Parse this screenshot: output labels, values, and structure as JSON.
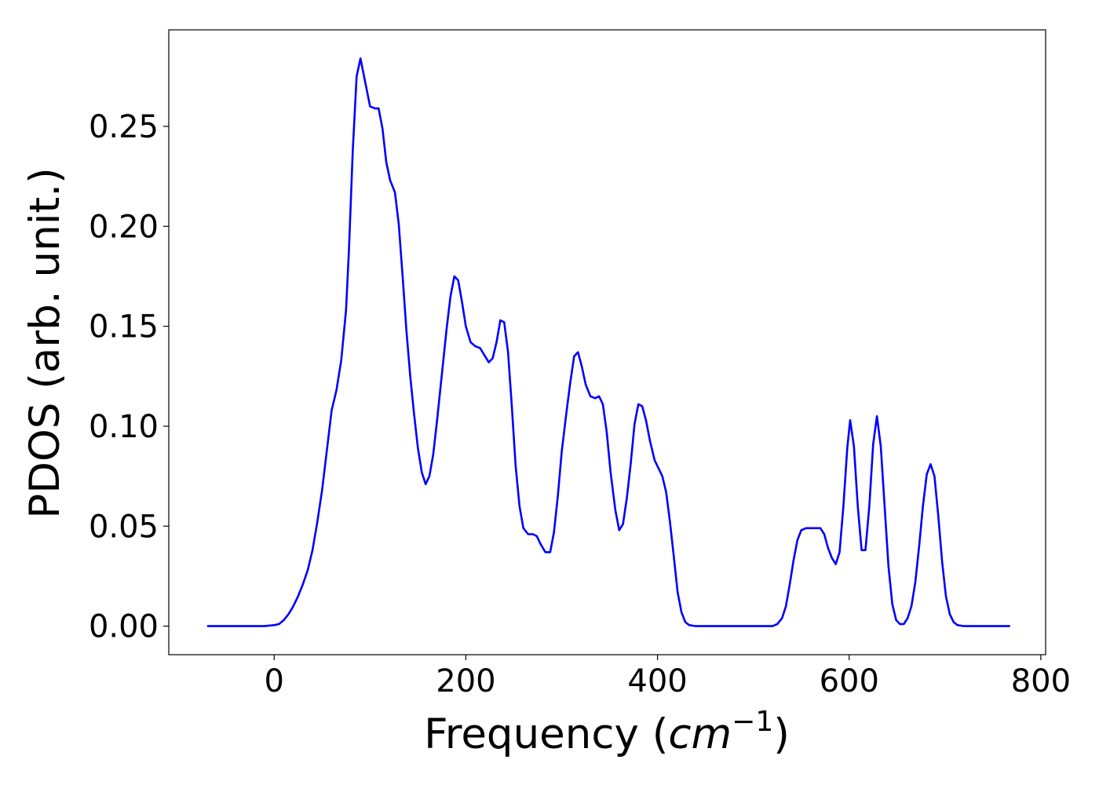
{
  "chart_data": {
    "type": "line",
    "title": "",
    "xlabel": {
      "prefix": "Frequency (",
      "italic": "cm",
      "superscript": "−1",
      "suffix": ")"
    },
    "ylabel": "PDOS (arb. unit.)",
    "xlim": [
      -110,
      805
    ],
    "ylim": [
      -0.0143,
      0.2983
    ],
    "x_ticks": [
      0,
      200,
      400,
      600,
      800
    ],
    "x_tick_labels": [
      "0",
      "200",
      "400",
      "600",
      "800"
    ],
    "y_ticks": [
      0.0,
      0.05,
      0.1,
      0.15,
      0.2,
      0.25
    ],
    "y_tick_labels": [
      "0.00",
      "0.05",
      "0.10",
      "0.15",
      "0.20",
      "0.25"
    ],
    "grid": false,
    "legend": "none",
    "series": [
      {
        "color": "#0000ff",
        "points": [
          [
            -70,
            0.0
          ],
          [
            -40,
            0.0
          ],
          [
            -10,
            0.0
          ],
          [
            0,
            0.0005
          ],
          [
            5,
            0.001
          ],
          [
            10,
            0.003
          ],
          [
            15,
            0.006
          ],
          [
            20,
            0.01
          ],
          [
            25,
            0.015
          ],
          [
            30,
            0.021
          ],
          [
            35,
            0.028
          ],
          [
            40,
            0.038
          ],
          [
            45,
            0.052
          ],
          [
            50,
            0.068
          ],
          [
            55,
            0.088
          ],
          [
            60,
            0.108
          ],
          [
            65,
            0.118
          ],
          [
            70,
            0.133
          ],
          [
            75,
            0.158
          ],
          [
            78,
            0.188
          ],
          [
            82,
            0.238
          ],
          [
            86,
            0.275
          ],
          [
            90,
            0.284
          ],
          [
            95,
            0.272
          ],
          [
            100,
            0.26
          ],
          [
            105,
            0.259
          ],
          [
            109,
            0.259
          ],
          [
            113,
            0.249
          ],
          [
            117,
            0.232
          ],
          [
            121,
            0.223
          ],
          [
            126,
            0.217
          ],
          [
            130,
            0.201
          ],
          [
            134,
            0.175
          ],
          [
            138,
            0.148
          ],
          [
            142,
            0.125
          ],
          [
            146,
            0.106
          ],
          [
            150,
            0.089
          ],
          [
            154,
            0.077
          ],
          [
            158,
            0.071
          ],
          [
            162,
            0.075
          ],
          [
            166,
            0.086
          ],
          [
            170,
            0.103
          ],
          [
            175,
            0.126
          ],
          [
            180,
            0.149
          ],
          [
            184,
            0.165
          ],
          [
            188,
            0.175
          ],
          [
            192,
            0.173
          ],
          [
            196,
            0.162
          ],
          [
            200,
            0.15
          ],
          [
            205,
            0.142
          ],
          [
            210,
            0.14
          ],
          [
            215,
            0.139
          ],
          [
            220,
            0.135
          ],
          [
            224,
            0.132
          ],
          [
            228,
            0.134
          ],
          [
            232,
            0.142
          ],
          [
            236,
            0.153
          ],
          [
            240,
            0.152
          ],
          [
            244,
            0.137
          ],
          [
            248,
            0.11
          ],
          [
            252,
            0.08
          ],
          [
            256,
            0.06
          ],
          [
            260,
            0.049
          ],
          [
            265,
            0.046
          ],
          [
            270,
            0.046
          ],
          [
            274,
            0.045
          ],
          [
            278,
            0.041
          ],
          [
            283,
            0.037
          ],
          [
            288,
            0.037
          ],
          [
            292,
            0.047
          ],
          [
            296,
            0.065
          ],
          [
            300,
            0.087
          ],
          [
            305,
            0.107
          ],
          [
            309,
            0.122
          ],
          [
            313,
            0.135
          ],
          [
            317,
            0.137
          ],
          [
            321,
            0.13
          ],
          [
            325,
            0.121
          ],
          [
            330,
            0.115
          ],
          [
            335,
            0.114
          ],
          [
            339,
            0.115
          ],
          [
            343,
            0.111
          ],
          [
            347,
            0.097
          ],
          [
            351,
            0.077
          ],
          [
            356,
            0.058
          ],
          [
            360,
            0.048
          ],
          [
            364,
            0.051
          ],
          [
            368,
            0.064
          ],
          [
            372,
            0.081
          ],
          [
            376,
            0.101
          ],
          [
            380,
            0.111
          ],
          [
            384,
            0.11
          ],
          [
            388,
            0.103
          ],
          [
            392,
            0.093
          ],
          [
            397,
            0.083
          ],
          [
            401,
            0.079
          ],
          [
            405,
            0.075
          ],
          [
            409,
            0.067
          ],
          [
            413,
            0.052
          ],
          [
            417,
            0.035
          ],
          [
            421,
            0.017
          ],
          [
            425,
            0.007
          ],
          [
            429,
            0.002
          ],
          [
            433,
            0.0005
          ],
          [
            440,
            0.0
          ],
          [
            480,
            0.0
          ],
          [
            520,
            0.0
          ],
          [
            525,
            0.001
          ],
          [
            530,
            0.004
          ],
          [
            534,
            0.01
          ],
          [
            538,
            0.021
          ],
          [
            542,
            0.033
          ],
          [
            546,
            0.043
          ],
          [
            550,
            0.048
          ],
          [
            555,
            0.049
          ],
          [
            560,
            0.049
          ],
          [
            565,
            0.049
          ],
          [
            570,
            0.049
          ],
          [
            574,
            0.046
          ],
          [
            578,
            0.039
          ],
          [
            582,
            0.034
          ],
          [
            586,
            0.031
          ],
          [
            590,
            0.037
          ],
          [
            594,
            0.06
          ],
          [
            598,
            0.089
          ],
          [
            601,
            0.103
          ],
          [
            605,
            0.09
          ],
          [
            609,
            0.06
          ],
          [
            613,
            0.038
          ],
          [
            617,
            0.038
          ],
          [
            621,
            0.06
          ],
          [
            625,
            0.091
          ],
          [
            629,
            0.105
          ],
          [
            633,
            0.09
          ],
          [
            637,
            0.06
          ],
          [
            641,
            0.03
          ],
          [
            645,
            0.011
          ],
          [
            649,
            0.003
          ],
          [
            653,
            0.001
          ],
          [
            657,
            0.001
          ],
          [
            661,
            0.004
          ],
          [
            665,
            0.01
          ],
          [
            669,
            0.022
          ],
          [
            673,
            0.04
          ],
          [
            677,
            0.06
          ],
          [
            681,
            0.076
          ],
          [
            685,
            0.081
          ],
          [
            689,
            0.075
          ],
          [
            693,
            0.055
          ],
          [
            697,
            0.032
          ],
          [
            701,
            0.015
          ],
          [
            705,
            0.006
          ],
          [
            709,
            0.002
          ],
          [
            713,
            0.0005
          ],
          [
            720,
            0.0
          ],
          [
            768,
            0.0
          ]
        ]
      }
    ]
  }
}
